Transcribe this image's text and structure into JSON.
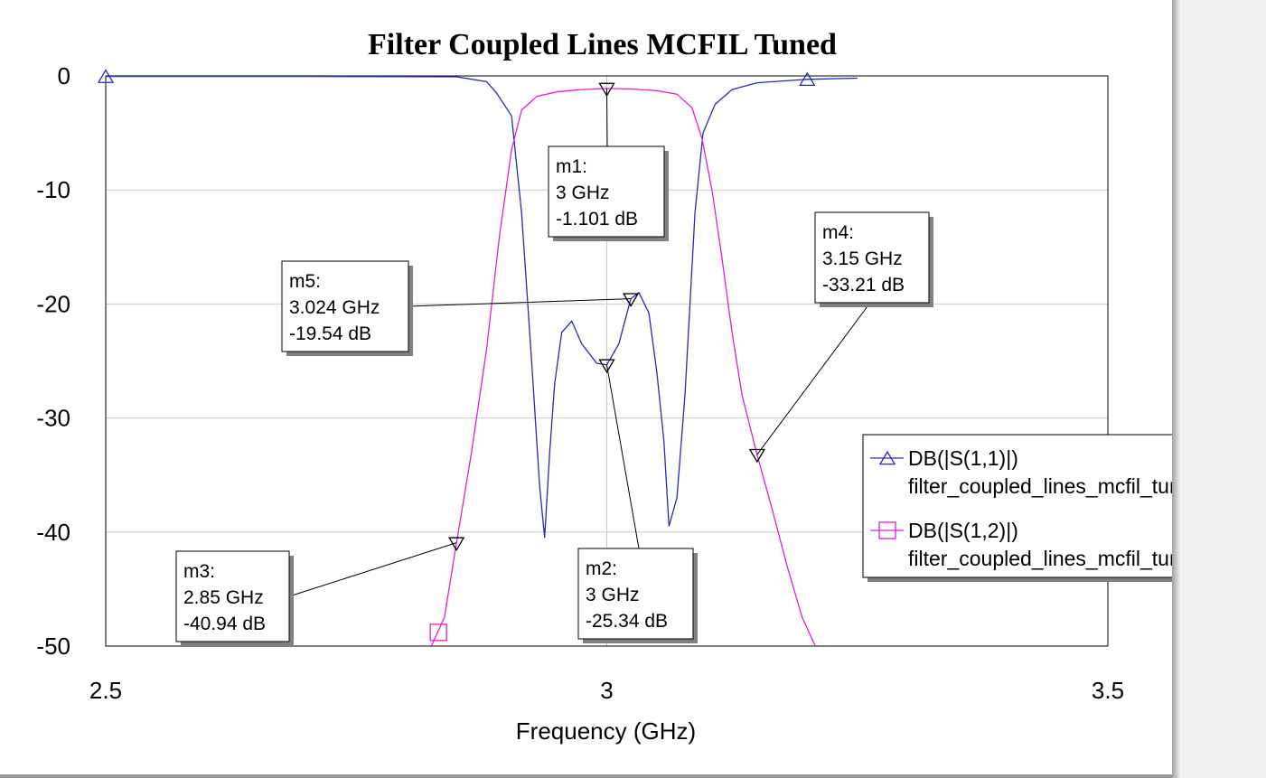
{
  "colors": {
    "s11": "#2a2ab0",
    "s12": "#e020d0",
    "grid": "#c8c8c8",
    "frame": "#000000"
  },
  "chart_data": {
    "type": "line",
    "title": "Filter Coupled Lines MCFIL Tuned",
    "xlabel": "Frequency (GHz)",
    "ylabel": "",
    "xlim": [
      2.5,
      3.5
    ],
    "ylim": [
      -50,
      0
    ],
    "grid": true,
    "legend_position": "right",
    "x_ticks": [
      {
        "value": 2.5,
        "label": "2.5"
      },
      {
        "value": 3.0,
        "label": "3"
      },
      {
        "value": 3.5,
        "label": "3.5"
      }
    ],
    "y_ticks": [
      {
        "value": 0,
        "label": "0"
      },
      {
        "value": -10,
        "label": "-10"
      },
      {
        "value": -20,
        "label": "-20"
      },
      {
        "value": -30,
        "label": "-30"
      },
      {
        "value": -40,
        "label": "-40"
      },
      {
        "value": -50,
        "label": "-50"
      }
    ],
    "series": [
      {
        "legend_title": "DB(|S(1,1)|)",
        "legend_source": "filter_coupled_lines_mcfil_tune",
        "color_key": "s11",
        "symbol": "triangle-up",
        "points": [
          [
            2.5,
            -0.05
          ],
          [
            2.7,
            -0.05
          ],
          [
            2.85,
            -0.08
          ],
          [
            2.88,
            -0.5
          ],
          [
            2.89,
            -1.5
          ],
          [
            2.905,
            -3.5
          ],
          [
            2.915,
            -12
          ],
          [
            2.925,
            -25
          ],
          [
            2.933,
            -36
          ],
          [
            2.938,
            -40.5
          ],
          [
            2.943,
            -33
          ],
          [
            2.948,
            -27
          ],
          [
            2.955,
            -22.5
          ],
          [
            2.965,
            -21.5
          ],
          [
            2.975,
            -23.5
          ],
          [
            2.99,
            -25.2
          ],
          [
            3.0,
            -25.34
          ],
          [
            3.012,
            -23.5
          ],
          [
            3.024,
            -19.54
          ],
          [
            3.032,
            -19.0
          ],
          [
            3.042,
            -20.8
          ],
          [
            3.05,
            -26
          ],
          [
            3.057,
            -32
          ],
          [
            3.062,
            -39.5
          ],
          [
            3.07,
            -37
          ],
          [
            3.078,
            -28
          ],
          [
            3.088,
            -12
          ],
          [
            3.096,
            -5
          ],
          [
            3.108,
            -2.5
          ],
          [
            3.125,
            -1.2
          ],
          [
            3.15,
            -0.6
          ],
          [
            3.2,
            -0.3
          ],
          [
            3.25,
            -0.2
          ]
        ],
        "symbol_points": [
          [
            2.5,
            -0.05
          ],
          [
            3.2,
            -0.3
          ]
        ]
      },
      {
        "legend_title": "DB(|S(1,2)|)",
        "legend_source": "filter_coupled_lines_mcfil_tune",
        "color_key": "s12",
        "symbol": "square",
        "points": [
          [
            2.825,
            -50
          ],
          [
            2.838,
            -47.5
          ],
          [
            2.85,
            -40.94
          ],
          [
            2.865,
            -33
          ],
          [
            2.88,
            -24
          ],
          [
            2.893,
            -14
          ],
          [
            2.905,
            -6.5
          ],
          [
            2.915,
            -3
          ],
          [
            2.93,
            -1.8
          ],
          [
            2.95,
            -1.4
          ],
          [
            2.975,
            -1.2
          ],
          [
            3.0,
            -1.101
          ],
          [
            3.025,
            -1.15
          ],
          [
            3.05,
            -1.3
          ],
          [
            3.07,
            -1.6
          ],
          [
            3.085,
            -2.8
          ],
          [
            3.095,
            -5.5
          ],
          [
            3.105,
            -10
          ],
          [
            3.115,
            -16
          ],
          [
            3.125,
            -22.5
          ],
          [
            3.135,
            -28
          ],
          [
            3.15,
            -33.21
          ],
          [
            3.165,
            -38
          ],
          [
            3.18,
            -43
          ],
          [
            3.195,
            -47.5
          ],
          [
            3.208,
            -50
          ]
        ],
        "symbol_points": [
          [
            2.832,
            -48.8
          ]
        ]
      }
    ],
    "markers": [
      {
        "name": "m1:",
        "freq": "3 GHz",
        "value": "-1.101 dB",
        "x": 3.0,
        "y": -1.101,
        "series": "s12"
      },
      {
        "name": "m2:",
        "freq": "3 GHz",
        "value": "-25.34 dB",
        "x": 3.0,
        "y": -25.34,
        "series": "s11"
      },
      {
        "name": "m3:",
        "freq": "2.85 GHz",
        "value": "-40.94 dB",
        "x": 2.85,
        "y": -40.94,
        "series": "s12"
      },
      {
        "name": "m4:",
        "freq": "3.15 GHz",
        "value": "-33.21 dB",
        "x": 3.15,
        "y": -33.21,
        "series": "s12"
      },
      {
        "name": "m5:",
        "freq": "3.024 GHz",
        "value": "-19.54 dB",
        "x": 3.024,
        "y": -19.54,
        "series": "s11"
      }
    ]
  }
}
